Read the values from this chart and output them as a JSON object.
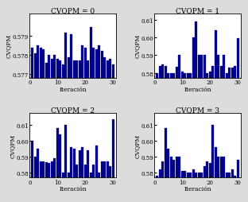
{
  "panels": [
    {
      "title": "CVQPM = 0",
      "ylabel": "CVQPM",
      "xlabel": "Iteración",
      "ylim": [
        0.5768,
        0.5802
      ],
      "yticks": [
        0.577,
        0.578,
        0.579
      ],
      "ytick_labels": [
        "0.577",
        "0.578",
        "0.579"
      ],
      "values": [
        0.5784,
        0.5781,
        0.5785,
        0.5784,
        0.5783,
        0.5776,
        0.578,
        0.5778,
        0.578,
        0.5778,
        0.5777,
        0.5775,
        0.5792,
        0.5779,
        0.5791,
        0.5777,
        0.5777,
        0.5777,
        0.5785,
        0.5784,
        0.5777,
        0.5795,
        0.5784,
        0.5783,
        0.5785,
        0.5782,
        0.5779,
        0.5777,
        0.5778,
        0.5775
      ]
    },
    {
      "title": "CVQPM = 1",
      "ylabel": "CVQPM",
      "xlabel": "Iteración",
      "ylim": [
        0.5773,
        0.6135
      ],
      "yticks": [
        0.58,
        0.59,
        0.6,
        0.61
      ],
      "ytick_labels": [
        "0.58",
        "0.59",
        "0.60",
        "0.61"
      ],
      "values": [
        0.58,
        0.584,
        0.585,
        0.584,
        0.58,
        0.58,
        0.58,
        0.5835,
        0.59,
        0.581,
        0.58,
        0.58,
        0.58,
        0.6,
        0.609,
        0.59,
        0.59,
        0.59,
        0.58,
        0.581,
        0.584,
        0.604,
        0.59,
        0.584,
        0.59,
        0.58,
        0.583,
        0.583,
        0.584,
        0.5995
      ]
    },
    {
      "title": "CVQPM = 2",
      "ylabel": "CVQPM",
      "xlabel": "Iteración",
      "ylim": [
        0.5768,
        0.617
      ],
      "yticks": [
        0.58,
        0.59,
        0.6,
        0.61
      ],
      "ytick_labels": [
        "0.58",
        "0.59",
        "0.60",
        "0.61"
      ],
      "values": [
        0.6,
        0.59,
        0.595,
        0.587,
        0.587,
        0.5865,
        0.586,
        0.587,
        0.589,
        0.608,
        0.604,
        0.58,
        0.61,
        0.58,
        0.596,
        0.595,
        0.585,
        0.594,
        0.596,
        0.585,
        0.594,
        0.58,
        0.585,
        0.597,
        0.58,
        0.587,
        0.587,
        0.587,
        0.584,
        0.613
      ]
    },
    {
      "title": "CVQPM = 3",
      "ylabel": "CVQPM",
      "xlabel": "Iteración",
      "ylim": [
        0.5768,
        0.617
      ],
      "yticks": [
        0.58,
        0.59,
        0.6,
        0.61
      ],
      "ytick_labels": [
        "0.58",
        "0.59",
        "0.60",
        "0.61"
      ],
      "values": [
        0.578,
        0.582,
        0.587,
        0.608,
        0.595,
        0.59,
        0.588,
        0.59,
        0.59,
        0.581,
        0.581,
        0.58,
        0.58,
        0.582,
        0.58,
        0.58,
        0.58,
        0.584,
        0.587,
        0.586,
        0.61,
        0.596,
        0.59,
        0.59,
        0.59,
        0.58,
        0.58,
        0.582,
        0.578,
        0.588
      ]
    }
  ],
  "bar_color": "#00008B",
  "bar_edge_color": "#00008B",
  "fig_facecolor": "#dcdcdc",
  "axes_facecolor": "#ffffff",
  "fontsize_title": 6.5,
  "fontsize_label": 5.5,
  "fontsize_tick": 5.0
}
